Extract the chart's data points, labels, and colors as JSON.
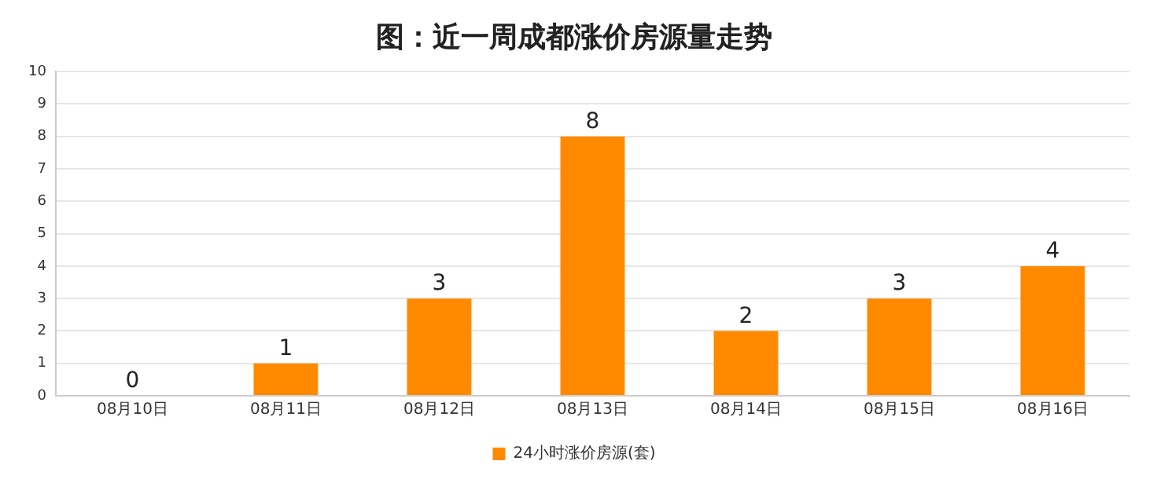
{
  "chart_data": {
    "type": "bar",
    "title": "图：近一周成都涨价房源量走势",
    "categories": [
      "08月10日",
      "08月11日",
      "08月12日",
      "08月13日",
      "08月14日",
      "08月15日",
      "08月16日"
    ],
    "series": [
      {
        "name": "24小时涨价房源(套)",
        "color": "#ff8a00",
        "values": [
          0,
          1,
          3,
          8,
          2,
          3,
          4
        ]
      }
    ],
    "ylim": [
      0,
      10
    ],
    "yticks": [
      0,
      1,
      2,
      3,
      4,
      5,
      6,
      7,
      8,
      9,
      10
    ],
    "grid": "y",
    "legend": "bottom",
    "data_labels": true
  }
}
